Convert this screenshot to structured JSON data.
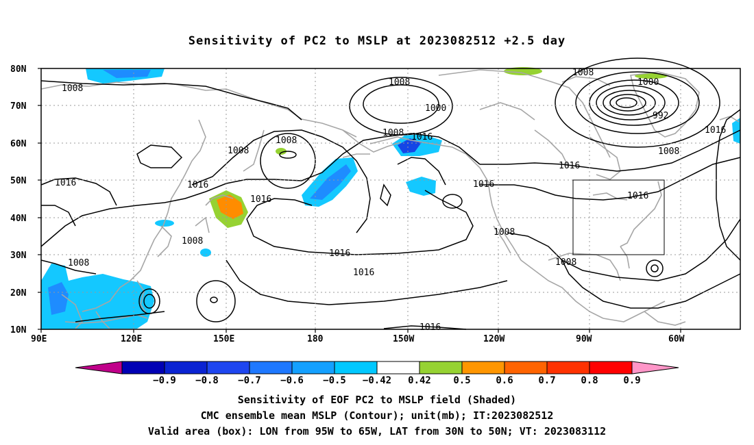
{
  "title": "Sensitivity of PC2 to MSLP at 2023082512 +2.5 day",
  "axes": {
    "lat_labels": [
      "80N",
      "70N",
      "60N",
      "50N",
      "40N",
      "30N",
      "20N",
      "10N"
    ],
    "lon_labels": [
      "90E",
      "120E",
      "150E",
      "180",
      "150W",
      "120W",
      "90W",
      "60W"
    ]
  },
  "contour_labels": [
    "1008",
    "1008",
    "1000",
    "1008",
    "1000",
    "992",
    "1008",
    "1016",
    "1008",
    "1016",
    "1008",
    "1016",
    "1016",
    "1016",
    "1016",
    "1016",
    "1016",
    "1008",
    "1008",
    "1008",
    "1016",
    "1016",
    "1008",
    "1008",
    "1016"
  ],
  "valid_box": {
    "lon_from": "95W",
    "lon_to": "65W",
    "lat_from": "30N",
    "lat_to": "50N"
  },
  "colorbar": {
    "labels": [
      "−0.9",
      "−0.8",
      "−0.7",
      "−0.6",
      "−0.5",
      "−0.42",
      "0.42",
      "0.5",
      "0.6",
      "0.7",
      "0.8",
      "0.9"
    ],
    "colors": [
      "#c0008a",
      "#0000b4",
      "#0a23d2",
      "#1e46f0",
      "#1e78ff",
      "#14a0ff",
      "#00c8ff",
      "#ffffff",
      "#96d232",
      "#ff9600",
      "#ff6400",
      "#ff3200",
      "#ff0000",
      "#ff96c8"
    ]
  },
  "shading_colors": {
    "negative_light": "#14c8ff",
    "negative_mid": "#1e8cff",
    "negative_strong": "#1446e6",
    "positive_green": "#96d232",
    "positive_orange": "#ff8c00",
    "coastline": "#a6a6a6",
    "contour": "#000000"
  },
  "captions": {
    "line1": "Sensitivity of EOF PC2 to MSLP field (Shaded)",
    "line2": "CMC ensemble mean MSLP (Contour); unit(mb); IT:2023082512",
    "line3": "Valid area (box): LON from 95W to 65W, LAT from 30N to 50N; VT: 2023083112"
  }
}
